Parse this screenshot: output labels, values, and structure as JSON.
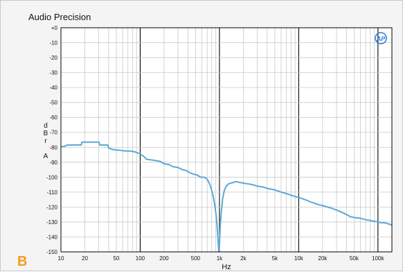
{
  "figure": {
    "title": "Audio Precision",
    "logo_text": "AP",
    "panel_label": "B"
  },
  "colors": {
    "background": "#f4f4f4",
    "plot_background": "#ffffff",
    "grid_minor": "#c8c8c8",
    "grid_major": "#000000",
    "trace": "#5aa8d8",
    "panel_label": "#f39a1e"
  },
  "chart_data": {
    "type": "line",
    "title": "Audio Precision",
    "xlabel": "Hz",
    "ylabel": "dBr A",
    "ylabel_lines": [
      "d",
      "B",
      "r",
      "",
      "A"
    ],
    "xscale": "log",
    "xlim": [
      10,
      150000
    ],
    "ylim": [
      -150,
      0
    ],
    "grid": true,
    "x_ticks": [
      {
        "value": 10,
        "label": "10"
      },
      {
        "value": 20,
        "label": "20"
      },
      {
        "value": 50,
        "label": "50"
      },
      {
        "value": 100,
        "label": "100"
      },
      {
        "value": 200,
        "label": "200"
      },
      {
        "value": 500,
        "label": "500"
      },
      {
        "value": 1000,
        "label": "1k"
      },
      {
        "value": 2000,
        "label": "2k"
      },
      {
        "value": 5000,
        "label": "5k"
      },
      {
        "value": 10000,
        "label": "10k"
      },
      {
        "value": 20000,
        "label": "20k"
      },
      {
        "value": 50000,
        "label": "50k"
      },
      {
        "value": 100000,
        "label": "100k"
      }
    ],
    "y_ticks": [
      {
        "value": 0,
        "label": "+0"
      },
      {
        "value": -10,
        "label": "-10"
      },
      {
        "value": -20,
        "label": "-20"
      },
      {
        "value": -30,
        "label": "-30"
      },
      {
        "value": -40,
        "label": "-40"
      },
      {
        "value": -50,
        "label": "-50"
      },
      {
        "value": -60,
        "label": "-60"
      },
      {
        "value": -70,
        "label": "-70"
      },
      {
        "value": -80,
        "label": "-80"
      },
      {
        "value": -90,
        "label": "-90"
      },
      {
        "value": -100,
        "label": "-100"
      },
      {
        "value": -110,
        "label": "-110"
      },
      {
        "value": -120,
        "label": "-120"
      },
      {
        "value": -130,
        "label": "-130"
      },
      {
        "value": -140,
        "label": "-140"
      },
      {
        "value": -150,
        "label": "-150"
      }
    ],
    "series": [
      {
        "points": [
          [
            10,
            -79.5
          ],
          [
            11,
            -79.5
          ],
          [
            12,
            -78.5
          ],
          [
            14,
            -78.5
          ],
          [
            17,
            -78.5
          ],
          [
            18,
            -78.5
          ],
          [
            18.5,
            -76.5
          ],
          [
            20,
            -76.5
          ],
          [
            24,
            -76.5
          ],
          [
            28,
            -76.5
          ],
          [
            29,
            -76.5
          ],
          [
            30,
            -76.5
          ],
          [
            31,
            -78.5
          ],
          [
            35,
            -78.5
          ],
          [
            39,
            -78.5
          ],
          [
            40,
            -80.5
          ],
          [
            45,
            -81.5
          ],
          [
            55,
            -82
          ],
          [
            65,
            -82.5
          ],
          [
            75,
            -82.5
          ],
          [
            85,
            -83
          ],
          [
            95,
            -84
          ],
          [
            100,
            -84.5
          ],
          [
            110,
            -86
          ],
          [
            120,
            -88
          ],
          [
            140,
            -88.5
          ],
          [
            160,
            -89
          ],
          [
            180,
            -89.5
          ],
          [
            200,
            -91
          ],
          [
            230,
            -91.5
          ],
          [
            260,
            -93
          ],
          [
            300,
            -93.5
          ],
          [
            340,
            -95
          ],
          [
            380,
            -95.5
          ],
          [
            420,
            -97
          ],
          [
            470,
            -98
          ],
          [
            520,
            -98.5
          ],
          [
            580,
            -100
          ],
          [
            640,
            -100
          ],
          [
            690,
            -101
          ],
          [
            730,
            -103
          ],
          [
            770,
            -106
          ],
          [
            810,
            -110
          ],
          [
            850,
            -115
          ],
          [
            880,
            -120
          ],
          [
            910,
            -126
          ],
          [
            935,
            -133
          ],
          [
            955,
            -140
          ],
          [
            970,
            -146
          ],
          [
            980,
            -150
          ],
          [
            995,
            -148
          ],
          [
            1010,
            -140
          ],
          [
            1030,
            -130
          ],
          [
            1060,
            -122
          ],
          [
            1100,
            -114
          ],
          [
            1150,
            -109
          ],
          [
            1220,
            -106
          ],
          [
            1300,
            -104.5
          ],
          [
            1400,
            -104
          ],
          [
            1500,
            -103.5
          ],
          [
            1600,
            -103
          ],
          [
            1800,
            -103.5
          ],
          [
            2000,
            -104
          ],
          [
            2300,
            -104.5
          ],
          [
            2600,
            -105
          ],
          [
            3000,
            -106
          ],
          [
            3500,
            -106.5
          ],
          [
            4000,
            -107.5
          ],
          [
            5000,
            -108.5
          ],
          [
            6000,
            -110
          ],
          [
            7000,
            -111
          ],
          [
            8000,
            -112
          ],
          [
            9000,
            -113
          ],
          [
            10000,
            -113.5
          ],
          [
            12000,
            -115
          ],
          [
            14000,
            -116.5
          ],
          [
            16000,
            -117.5
          ],
          [
            18000,
            -118.5
          ],
          [
            20000,
            -119
          ],
          [
            25000,
            -120.5
          ],
          [
            30000,
            -122
          ],
          [
            35000,
            -123.5
          ],
          [
            40000,
            -125
          ],
          [
            45000,
            -126.5
          ],
          [
            50000,
            -127
          ],
          [
            60000,
            -127.5
          ],
          [
            70000,
            -128.5
          ],
          [
            80000,
            -129
          ],
          [
            90000,
            -129.5
          ],
          [
            100000,
            -130
          ],
          [
            110000,
            -130.5
          ],
          [
            120000,
            -130.5
          ],
          [
            130000,
            -131
          ],
          [
            140000,
            -131.5
          ],
          [
            150000,
            -132
          ]
        ]
      }
    ]
  }
}
